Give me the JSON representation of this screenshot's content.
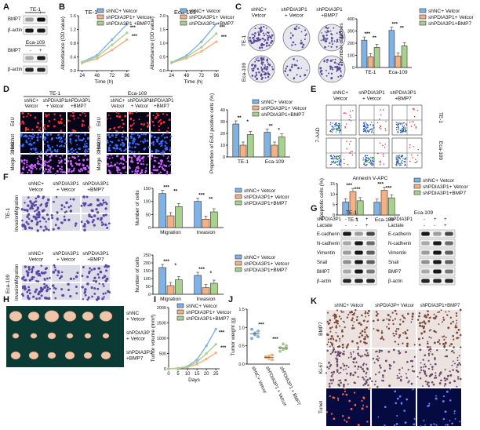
{
  "panel_letters": [
    "A",
    "B",
    "C",
    "D",
    "E",
    "F",
    "G",
    "H",
    "I",
    "J",
    "K"
  ],
  "panelA": {
    "cells1": "TE-1",
    "cells2": "Eca-109",
    "rows": [
      "BMP7",
      "β-actin"
    ],
    "lanes": [
      "-",
      "+"
    ]
  },
  "legend3": [
    "shNC+ Vetcor",
    "shPDIA3P1+ Vetcor",
    "shPDIA3P1+BMP7"
  ],
  "colors": {
    "shNC": "#7fb3e6",
    "shPDIA3P1": "#f4b183",
    "BMP7": "#a9d18e"
  },
  "panelC": {
    "col_heads": [
      "shNC+\nVetcor",
      "shPDIA3P1\n+ Vetcor",
      "shPDIA3P1\n+BMP7"
    ],
    "row_labels": [
      "TE-1",
      "Eca-109"
    ],
    "legend": [
      "shNC+ Vetcor",
      "shPDIA3P1+ Vetcor",
      "shPDIA3P1+BMP7"
    ]
  },
  "panelD": {
    "group1": "TE-1",
    "group2": "Eca-109",
    "heads": [
      "shNC+\nVetcor",
      "shPDIA3P1\n+ Vetcor",
      "shPDIA3P1\n+BMP7"
    ],
    "rows": [
      "EdU",
      "Hoechst\n33342",
      "Merge"
    ]
  },
  "panelE": {
    "heads": [
      "shNC+\nVetcor",
      "shPDIA3P1\n+ Vetcor",
      "shPDIA3P1\n+BMP7"
    ],
    "ylabel": "7-AAD",
    "xlabel": "Annexin V-APC",
    "rows": [
      "TE-1",
      "Eca-109"
    ]
  },
  "panelF": {
    "heads": [
      "shNC+\nVetcor",
      "shPDIA3P1\n+ Vetcor",
      "shPDIA3P1\n+BMP7"
    ],
    "cells1": "TE-1",
    "cells2": "Eca-109",
    "rows": [
      "Migration",
      "Invasion"
    ]
  },
  "panelG": {
    "group1": "TE-1",
    "group2": "Eca-109",
    "cond1": "shPDIA3P1",
    "cond2": "Lactate",
    "lanes1": [
      "-",
      "+",
      "+"
    ],
    "lanes2": [
      "-",
      "-",
      "+"
    ],
    "rows": [
      "E-cadherin",
      "N-cadherin",
      "Vimentin",
      "Snail",
      "BMP7",
      "β-actin"
    ]
  },
  "panelH": {
    "rows": [
      "shNC\n+ Vetcor",
      "shPDIA3P\n+ Vetcor",
      "shPDIA3P1\n+BMP7"
    ]
  },
  "panelK": {
    "heads": [
      "shNC+ Vetcor",
      "shPDIA3P+ Vetcor",
      "shPDIA3P1+BMP7"
    ],
    "rows": [
      "BMP7",
      "Ki-67",
      "Tunel"
    ]
  },
  "chart_data": [
    {
      "id": "B1",
      "type": "line",
      "title": "TE-1",
      "xlabel": "Time (h)",
      "ylabel": "Absorbance (OD value)",
      "x": [
        24,
        48,
        72,
        96
      ],
      "ylim": [
        0,
        1.6
      ],
      "yticks": [
        "0.0",
        "0.4",
        "0.8",
        "1.2",
        "1.6"
      ],
      "xticks": [
        "24",
        "48",
        "72",
        "96"
      ],
      "series": [
        {
          "name": "shNC+ Vetcor",
          "values": [
            0.25,
            0.45,
            0.9,
            1.35
          ]
        },
        {
          "name": "shPDIA3P1+ Vetcor",
          "values": [
            0.22,
            0.35,
            0.6,
            0.9
          ]
        },
        {
          "name": "shPDIA3P1 +BMP7",
          "values": [
            0.24,
            0.4,
            0.75,
            1.1
          ]
        }
      ],
      "annotations": [
        "***",
        "***"
      ]
    },
    {
      "id": "B2",
      "type": "line",
      "title": "Eca-109",
      "xlabel": "Time (h)",
      "ylabel": "Absorbance (OD value)",
      "x": [
        24,
        48,
        72,
        96
      ],
      "ylim": [
        0,
        2.0
      ],
      "yticks": [
        "0.0",
        "0.5",
        "1.0",
        "1.5",
        "2.0"
      ],
      "xticks": [
        "24",
        "48",
        "72",
        "96"
      ],
      "series": [
        {
          "name": "shNC+ Vetcor",
          "values": [
            0.3,
            0.55,
            1.05,
            1.7
          ]
        },
        {
          "name": "shPDIA3P1+ Vetcor",
          "values": [
            0.28,
            0.45,
            0.7,
            1.05
          ]
        },
        {
          "name": "shPDIA3P1 +BMP7",
          "values": [
            0.29,
            0.5,
            0.85,
            1.35
          ]
        }
      ],
      "annotations": [
        "***",
        "***"
      ]
    },
    {
      "id": "C",
      "type": "bar",
      "ylabel": "Number of clones",
      "categories": [
        "TE-1",
        "Eca-109"
      ],
      "ylim": [
        0,
        400
      ],
      "yticks": [
        "0",
        "100",
        "200",
        "300",
        "400"
      ],
      "series": [
        {
          "name": "shNC+ Vetcor",
          "values": [
            225,
            305
          ]
        },
        {
          "name": "shPDIA3P1+ Vetcor",
          "values": [
            88,
            95
          ]
        },
        {
          "name": "shPDIA3P1+BMP7",
          "values": [
            165,
            178
          ]
        }
      ],
      "annotations": [
        "***",
        "**",
        "***",
        "**"
      ]
    },
    {
      "id": "D",
      "type": "bar",
      "ylabel": "Proportion of EdU positive cells (%)",
      "categories": [
        "TE-1",
        "Eca-109"
      ],
      "ylim": [
        0,
        40
      ],
      "yticks": [
        "0",
        "10",
        "20",
        "30",
        "40"
      ],
      "series": [
        {
          "name": "shNC+ Vetcor",
          "values": [
            28,
            21
          ]
        },
        {
          "name": "shPDIA3P1+ Vetcor",
          "values": [
            10,
            10
          ]
        },
        {
          "name": "shPDIA3P1+BMP7",
          "values": [
            19,
            17
          ]
        }
      ],
      "annotations": [
        "**",
        "*",
        "**",
        "*"
      ]
    },
    {
      "id": "E",
      "type": "bar",
      "ylabel": "Apoptotic cells (%)",
      "categories": [
        "TE-1",
        "Eca-109"
      ],
      "ylim": [
        0,
        15
      ],
      "yticks": [
        "0",
        "5",
        "10",
        "15"
      ],
      "series": [
        {
          "name": "shNC+ Vetcor",
          "values": [
            6.2,
            6.1
          ]
        },
        {
          "name": "shPDIA3P1+ Vetcor",
          "values": [
            11.2,
            11.8
          ]
        },
        {
          "name": "shPDIA3P1+BMP7",
          "values": [
            6.8,
            8.2
          ]
        }
      ],
      "annotations": [
        "***",
        "***",
        "***",
        "***"
      ]
    },
    {
      "id": "F1",
      "type": "bar",
      "ylabel": "Number of cells",
      "categories": [
        "Migration",
        "Invasion"
      ],
      "ylim": [
        0,
        150
      ],
      "yticks": [
        "0",
        "50",
        "100",
        "150"
      ],
      "series": [
        {
          "name": "shNC+ Vetcor",
          "values": [
            130,
            100
          ]
        },
        {
          "name": "shPDIA3P1+ Vetcor",
          "values": [
            45,
            32
          ]
        },
        {
          "name": "shPDIA3P1+BMP7",
          "values": [
            80,
            60
          ]
        }
      ],
      "annotations": [
        "***",
        "**",
        "***",
        "**"
      ]
    },
    {
      "id": "F2",
      "type": "bar",
      "ylabel": "Number of cells",
      "categories": [
        "Migration",
        "Invasion"
      ],
      "ylim": [
        0,
        250
      ],
      "yticks": [
        "0",
        "50",
        "100",
        "150",
        "200",
        "250"
      ],
      "series": [
        {
          "name": "shNC+ Vetcor",
          "values": [
            170,
            120
          ]
        },
        {
          "name": "shPDIA3P1+ Vetcor",
          "values": [
            55,
            42
          ]
        },
        {
          "name": "shPDIA3P1+BMP7",
          "values": [
            92,
            70
          ]
        }
      ],
      "annotations": [
        "***",
        "*",
        "***",
        "*"
      ]
    },
    {
      "id": "I",
      "type": "line",
      "xlabel": "Days",
      "ylabel": "Tumor volume (mm³)",
      "x": [
        0,
        5,
        10,
        15,
        20,
        25
      ],
      "ylim": [
        0,
        2000
      ],
      "yticks": [
        "0",
        "500",
        "1000",
        "1500",
        "2000"
      ],
      "xticks": [
        "0",
        "5",
        "10",
        "15",
        "20",
        "25"
      ],
      "series": [
        {
          "name": "shNC+ Vetcor",
          "values": [
            0,
            20,
            80,
            300,
            750,
            1300
          ]
        },
        {
          "name": "shPDIA3P1+ Vetcor",
          "values": [
            0,
            15,
            50,
            150,
            320,
            520
          ]
        },
        {
          "name": "shPDIA3P1+BMP7",
          "values": [
            0,
            18,
            65,
            220,
            500,
            800
          ]
        }
      ],
      "annotations": [
        "***",
        "***"
      ]
    },
    {
      "id": "J",
      "type": "scatter",
      "ylabel": "Tumor weight (g)",
      "categories": [
        "shNC+ Vetcor",
        "shPDIA3P1 + Vetcor",
        "shPDIA3P1 + BMP7"
      ],
      "ylim": [
        0.0,
        1.5
      ],
      "yticks": [
        "0.0",
        "0.5",
        "1.0",
        "1.5"
      ],
      "series": [
        {
          "name": "shNC+ Vetcor",
          "values": [
            0.95,
            0.85,
            0.75,
            0.7,
            0.8,
            0.9
          ]
        },
        {
          "name": "shPDIA3P1 + Vetcor",
          "values": [
            0.2,
            0.15,
            0.25,
            0.18,
            0.22,
            0.12
          ]
        },
        {
          "name": "shPDIA3P1 + BMP7",
          "values": [
            0.45,
            0.4,
            0.5,
            0.35,
            0.55,
            0.42
          ]
        }
      ],
      "annotations": [
        "***",
        "***"
      ]
    }
  ]
}
